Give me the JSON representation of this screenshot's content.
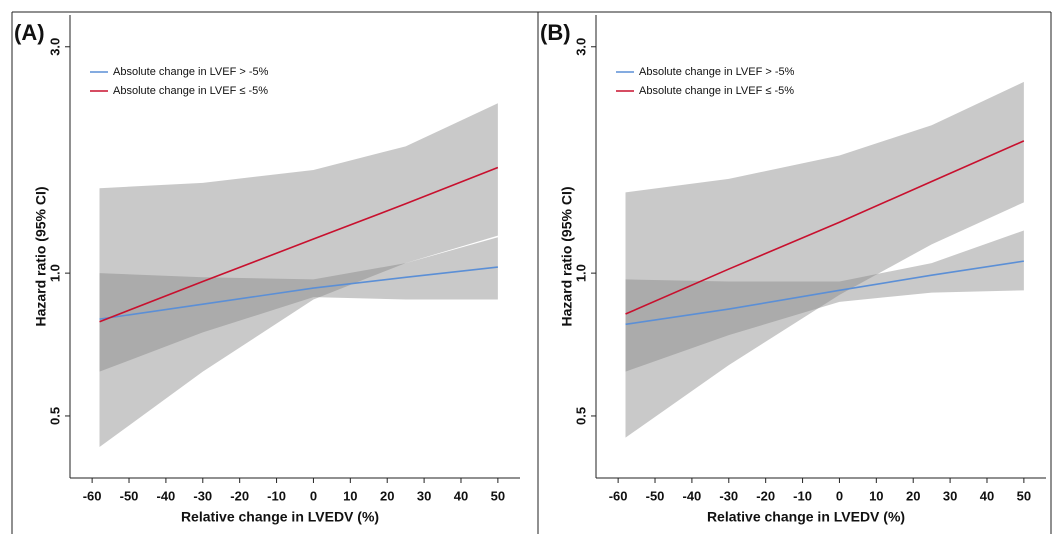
{
  "chart_data": [
    {
      "type": "line",
      "panel_label": "(A)",
      "x_label": "Relative change in LVEDV (%)",
      "y_label": "Hazard ratio (95% CI)",
      "log_y": true,
      "legend_position": "upper left",
      "band_color": "#888888",
      "xlim": [
        -66,
        56
      ],
      "ylim": [
        0.37,
        3.5
      ],
      "xticks": [
        -60,
        -50,
        -40,
        -30,
        -20,
        -10,
        0,
        10,
        20,
        30,
        40,
        50
      ],
      "yticks": [
        {
          "value": 0.5,
          "label": "0.5"
        },
        {
          "value": 1,
          "label": "1.0"
        },
        {
          "value": 3,
          "label": "3.0"
        }
      ],
      "series": [
        {
          "name": "Absolute change in LVEF > -5%",
          "color": "#5b8fd6",
          "x": [
            -58,
            -30,
            0,
            25,
            50
          ],
          "values": [
            0.8,
            0.86,
            0.93,
            0.98,
            1.03
          ],
          "lower": [
            0.62,
            0.75,
            0.89,
            0.88,
            0.88
          ],
          "upper": [
            1.0,
            0.98,
            0.97,
            1.05,
            1.19
          ]
        },
        {
          "name": "Absolute change in LVEF ≤ -5%",
          "color": "#c8102e",
          "x": [
            -58,
            -30,
            0,
            25,
            50
          ],
          "values": [
            0.79,
            0.96,
            1.18,
            1.4,
            1.67
          ],
          "lower": [
            0.43,
            0.62,
            0.88,
            1.05,
            1.2
          ],
          "upper": [
            1.51,
            1.55,
            1.65,
            1.85,
            2.28
          ]
        }
      ]
    },
    {
      "type": "line",
      "panel_label": "(B)",
      "x_label": "Relative change in LVEDV (%)",
      "y_label": "Hazard ratio (95% CI)",
      "log_y": true,
      "legend_position": "upper left",
      "band_color": "#888888",
      "xlim": [
        -66,
        56
      ],
      "ylim": [
        0.37,
        3.5
      ],
      "xticks": [
        -60,
        -50,
        -40,
        -30,
        -20,
        -10,
        0,
        10,
        20,
        30,
        40,
        50
      ],
      "yticks": [
        {
          "value": 0.5,
          "label": "0.5"
        },
        {
          "value": 1,
          "label": "1.0"
        },
        {
          "value": 3,
          "label": "3.0"
        }
      ],
      "series": [
        {
          "name": "Absolute change in LVEF > -5%",
          "color": "#5b8fd6",
          "x": [
            -58,
            -30,
            0,
            25,
            50
          ],
          "values": [
            0.78,
            0.84,
            0.92,
            0.99,
            1.06
          ],
          "lower": [
            0.62,
            0.74,
            0.87,
            0.91,
            0.92
          ],
          "upper": [
            0.97,
            0.96,
            0.96,
            1.05,
            1.23
          ]
        },
        {
          "name": "Absolute change in LVEF ≤ -5%",
          "color": "#c8102e",
          "x": [
            -58,
            -30,
            0,
            25,
            50
          ],
          "values": [
            0.82,
            1.02,
            1.28,
            1.56,
            1.9
          ],
          "lower": [
            0.45,
            0.64,
            0.9,
            1.15,
            1.41
          ],
          "upper": [
            1.48,
            1.58,
            1.77,
            2.05,
            2.53
          ]
        }
      ]
    }
  ]
}
